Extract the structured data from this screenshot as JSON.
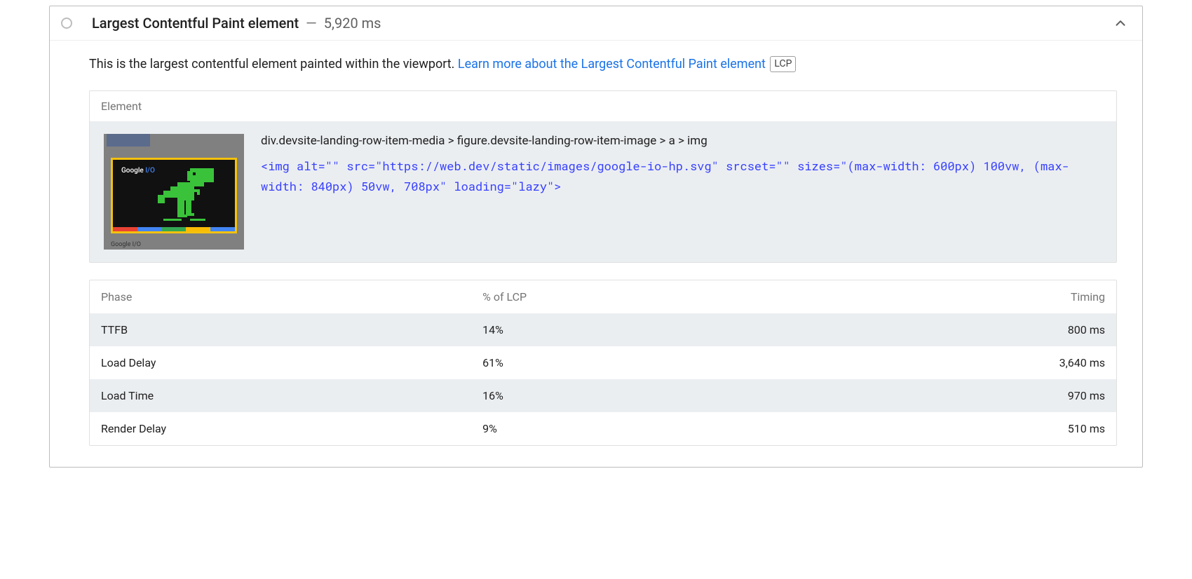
{
  "colors": {
    "border": "#bdbdbd",
    "text": "#212121",
    "muted": "#757575",
    "link": "#1a73e8",
    "panel_bg": "#ebeef1",
    "code": "#3740ff"
  },
  "audit": {
    "title": "Largest Contentful Paint element",
    "separator": "—",
    "value": "5,920 ms"
  },
  "description": {
    "text": "This is the largest contentful element painted within the viewport. ",
    "link_text": "Learn more about the Largest Contentful Paint element",
    "link_href": "#",
    "badge": "LCP"
  },
  "element_panel": {
    "header": "Element",
    "selector": "div.devsite-landing-row-item-media > figure.devsite-landing-row-item-image > a > img",
    "snippet": "<img alt=\"\" src=\"https://web.dev/static/images/google-io-hp.svg\" srcset=\"\" sizes=\"(max-width: 600px) 100vw, (max-width: 840px) 50vw, 708px\" loading=\"lazy\">",
    "thumb": {
      "logo_prefix": "Google ",
      "logo_suffix_html": "I/O"
    }
  },
  "phase_table": {
    "headers": {
      "phase": "Phase",
      "pct": "% of LCP",
      "timing": "Timing"
    },
    "rows": [
      {
        "phase": "TTFB",
        "pct": "14%",
        "timing": "800 ms",
        "striped": true
      },
      {
        "phase": "Load Delay",
        "pct": "61%",
        "timing": "3,640 ms",
        "striped": false
      },
      {
        "phase": "Load Time",
        "pct": "16%",
        "timing": "970 ms",
        "striped": true
      },
      {
        "phase": "Render Delay",
        "pct": "9%",
        "timing": "510 ms",
        "striped": false
      }
    ]
  }
}
